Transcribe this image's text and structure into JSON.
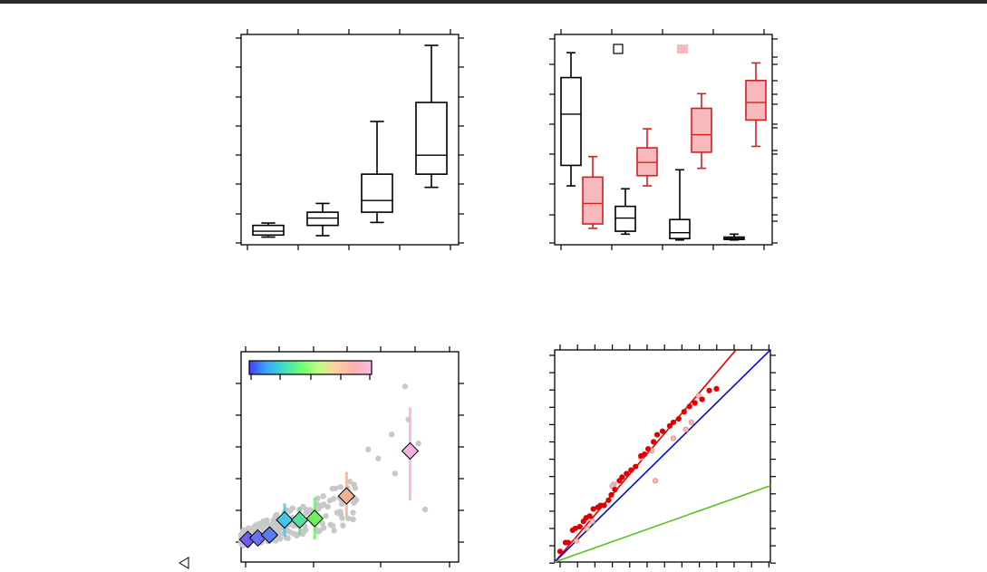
{
  "window": {
    "bar_color": "#2b2b2b"
  },
  "colors": {
    "box_default": "#000000",
    "box_red": "#d62020",
    "box_red_fill": "#f7b9bb",
    "point_gray": "#c8c8c8",
    "point_red": "#e00000",
    "point_red_light": "#ef8a8a",
    "line_red": "#e00000",
    "line_blue": "#0010c8",
    "line_green": "#5ec022"
  },
  "legend": {
    "open_square_icon": "open-square-icon",
    "filled_square_icon": "filled-pink-square-icon",
    "triangle_icon": "left-triangle-icon"
  },
  "chart_data": [
    {
      "type": "box",
      "panel": "top-left",
      "xlim": [
        0.5,
        4.5
      ],
      "ylim": [
        0,
        7
      ],
      "boxes": [
        {
          "x": 1,
          "min": 0.2,
          "q1": 0.27,
          "median": 0.4,
          "q3": 0.6,
          "max": 0.68,
          "color": "#000000",
          "fill": "none"
        },
        {
          "x": 2,
          "min": 0.25,
          "q1": 0.6,
          "median": 0.85,
          "q3": 1.05,
          "max": 1.35,
          "color": "#000000",
          "fill": "none"
        },
        {
          "x": 3,
          "min": 0.7,
          "q1": 1.05,
          "median": 1.45,
          "q3": 2.35,
          "max": 4.15,
          "color": "#000000",
          "fill": "none"
        },
        {
          "x": 4,
          "min": 1.9,
          "q1": 2.35,
          "median": 3.0,
          "q3": 4.8,
          "max": 6.75,
          "color": "#000000",
          "fill": "none"
        }
      ],
      "grid": false
    },
    {
      "type": "box",
      "panel": "top-right",
      "xlim": [
        0.5,
        4.5
      ],
      "ylim": [
        0,
        7
      ],
      "legend": "top",
      "series": [
        {
          "style": "open",
          "color": "#000000",
          "fill": "none",
          "boxes": [
            {
              "x": 0.8,
              "min": 1.95,
              "q1": 2.65,
              "median": 4.4,
              "q3": 5.65,
              "max": 6.5
            },
            {
              "x": 1.8,
              "min": 0.3,
              "q1": 0.4,
              "median": 0.85,
              "q3": 1.25,
              "max": 1.85
            },
            {
              "x": 2.8,
              "min": 0.1,
              "q1": 0.15,
              "median": 0.35,
              "q3": 0.8,
              "max": 2.5
            },
            {
              "x": 3.8,
              "min": 0.1,
              "q1": 0.12,
              "median": 0.15,
              "q3": 0.2,
              "max": 0.3
            }
          ]
        },
        {
          "style": "filled",
          "color": "#d62020",
          "fill": "#f7b9bb",
          "boxes": [
            {
              "x": 1.2,
              "min": 0.5,
              "q1": 0.65,
              "median": 1.35,
              "q3": 2.25,
              "max": 2.95
            },
            {
              "x": 2.2,
              "min": 1.95,
              "q1": 2.3,
              "median": 2.75,
              "q3": 3.25,
              "max": 3.9
            },
            {
              "x": 3.2,
              "min": 2.55,
              "q1": 3.1,
              "median": 3.7,
              "q3": 4.6,
              "max": 5.1
            },
            {
              "x": 4.2,
              "min": 3.3,
              "q1": 4.2,
              "median": 4.8,
              "q3": 5.55,
              "max": 6.15
            }
          ]
        }
      ],
      "grid": false
    },
    {
      "type": "scatter",
      "panel": "bottom-left",
      "xlim": [
        0,
        6.5
      ],
      "ylim": [
        0,
        6.5
      ],
      "colorbar": {
        "placement": "top-left",
        "stops": [
          "#4040ff",
          "#38a8ff",
          "#40e0c0",
          "#70ff70",
          "#c0ff80",
          "#ffd0a0",
          "#ffb0b0",
          "#ffb8e8"
        ]
      },
      "summary": [
        {
          "x": 0.2,
          "y": 0.0,
          "lo": 0.0,
          "hi": 0.0,
          "color": "#6b60f0"
        },
        {
          "x": 0.5,
          "y": 0.05,
          "lo": 0.0,
          "hi": 0.0,
          "color": "#6b6ff5"
        },
        {
          "x": 0.85,
          "y": 0.15,
          "lo": -0.05,
          "hi": 0.35,
          "color": "#5a7df5"
        },
        {
          "x": 1.3,
          "y": 0.65,
          "lo": 0.1,
          "hi": 1.2,
          "color": "#42c6e8"
        },
        {
          "x": 1.75,
          "y": 0.65,
          "lo": 0.15,
          "hi": 1.05,
          "color": "#52e0a0"
        },
        {
          "x": 2.2,
          "y": 0.7,
          "lo": 0.0,
          "hi": 1.4,
          "color": "#6ef060"
        },
        {
          "x": 3.15,
          "y": 1.45,
          "lo": 0.75,
          "hi": 2.25,
          "color": "#f6b090"
        },
        {
          "x": 5.05,
          "y": 2.95,
          "lo": 1.3,
          "hi": 4.4,
          "color": "#f9b0e0"
        }
      ],
      "points_color": "#c8c8c8",
      "grid": false
    },
    {
      "type": "scatter",
      "panel": "bottom-right",
      "xlim": [
        0,
        12
      ],
      "ylim": [
        0,
        12
      ],
      "lines": [
        {
          "slope": 1.19,
          "intercept": 0,
          "color": "#e00000"
        },
        {
          "slope": 1.0,
          "intercept": 0,
          "color": "#0010c8"
        },
        {
          "slope": 0.36,
          "intercept": 0,
          "color": "#5ec022"
        }
      ],
      "points_red_x": [
        0.3,
        0.6,
        0.75,
        1.0,
        1.15,
        1.4,
        1.6,
        1.75,
        1.95,
        2.15,
        2.4,
        2.55,
        2.75,
        3.0,
        3.15,
        3.35,
        3.6,
        3.75,
        4.0,
        4.25,
        4.5,
        4.8,
        5.0,
        5.2,
        5.5,
        5.7,
        6.0,
        6.4,
        6.6,
        6.9,
        7.2,
        7.5,
        7.8,
        8.2,
        8.6,
        9.0
      ],
      "points_red_y": [
        0.6,
        1.1,
        1.1,
        1.8,
        1.9,
        2.0,
        2.3,
        2.5,
        2.6,
        3.0,
        3.1,
        3.2,
        3.2,
        3.5,
        3.8,
        4.1,
        4.6,
        4.8,
        5.0,
        5.2,
        5.4,
        6.0,
        6.1,
        6.4,
        6.8,
        7.2,
        7.4,
        7.7,
        7.9,
        8.1,
        8.5,
        8.8,
        9.0,
        9.2,
        9.7,
        9.8
      ],
      "points_pink_x": [
        1.2,
        2.1,
        3.3,
        5.4,
        5.6,
        6.6,
        7.3,
        7.6,
        8.0,
        3.2,
        4.8,
        1.8
      ],
      "points_pink_y": [
        1.2,
        2.3,
        4.4,
        6.3,
        4.6,
        7.0,
        7.5,
        7.9,
        9.4,
        4.3,
        5.9,
        1.9
      ],
      "grid": false
    }
  ]
}
